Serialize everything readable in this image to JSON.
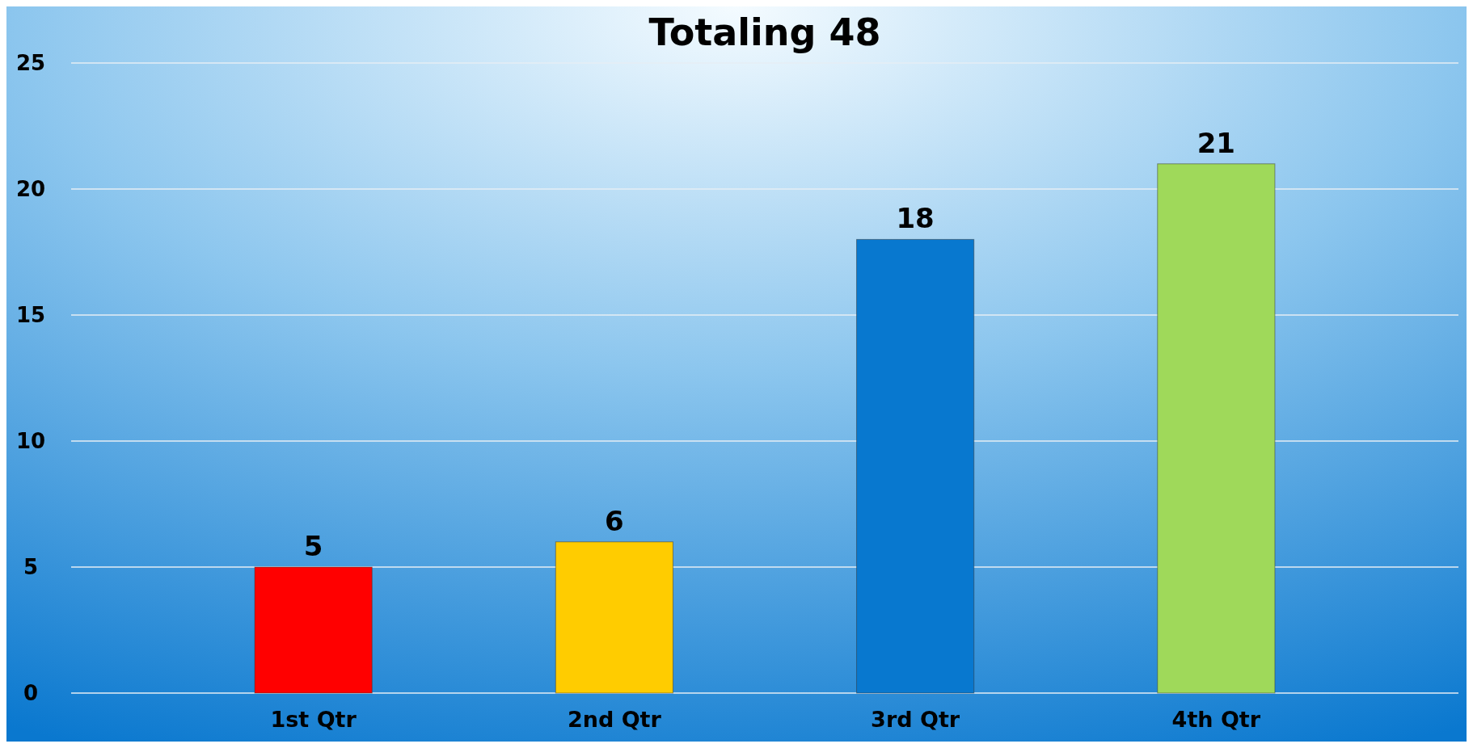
{
  "chart_data": {
    "type": "bar",
    "title": "Totaling 48",
    "categories": [
      "1st Qtr",
      "2nd Qtr",
      "3rd Qtr",
      "4th Qtr"
    ],
    "values": [
      5,
      6,
      18,
      21
    ],
    "colors": [
      "#ff0000",
      "#ffcc00",
      "#0878cf",
      "#9fd95a"
    ],
    "ylim": [
      0,
      25
    ],
    "yticks": [
      0,
      5,
      10,
      15,
      20,
      25
    ],
    "grid": "y",
    "data_labels": true
  }
}
